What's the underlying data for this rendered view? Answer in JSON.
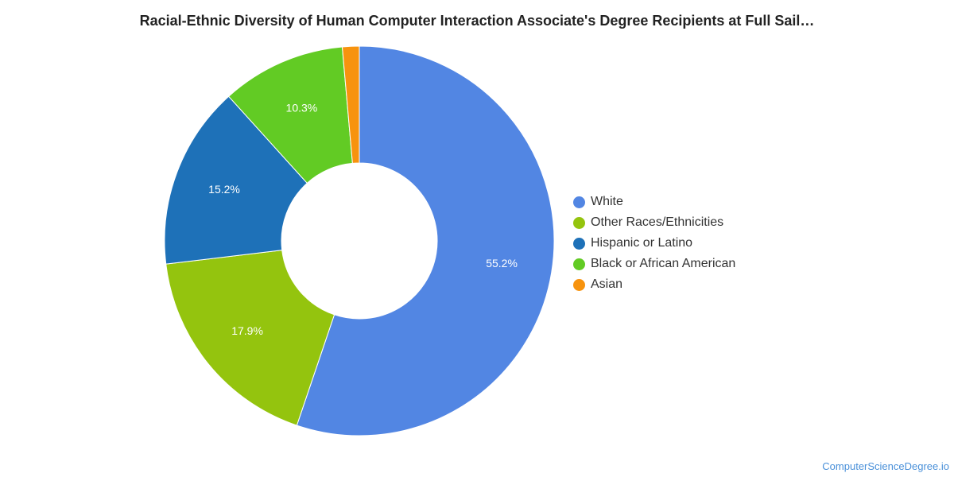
{
  "chart_data": {
    "type": "pie",
    "title": "Racial-Ethnic Diversity of Human Computer Interaction Associate's Degree Recipients at Full Sail…",
    "donut": true,
    "legend_position": "right",
    "slices": [
      {
        "label": "White",
        "value": 55.2,
        "display": "55.2%",
        "color": "#5286e3"
      },
      {
        "label": "Other Races/Ethnicities",
        "value": 17.9,
        "display": "17.9%",
        "color": "#94c40e"
      },
      {
        "label": "Hispanic or Latino",
        "value": 15.2,
        "display": "15.2%",
        "color": "#1e71b8"
      },
      {
        "label": "Black or African American",
        "value": 10.3,
        "display": "10.3%",
        "color": "#62cb24"
      },
      {
        "label": "Asian",
        "value": 1.4,
        "display": "",
        "color": "#f7930e"
      }
    ]
  },
  "footer": {
    "source": "ComputerScienceDegree.io"
  }
}
